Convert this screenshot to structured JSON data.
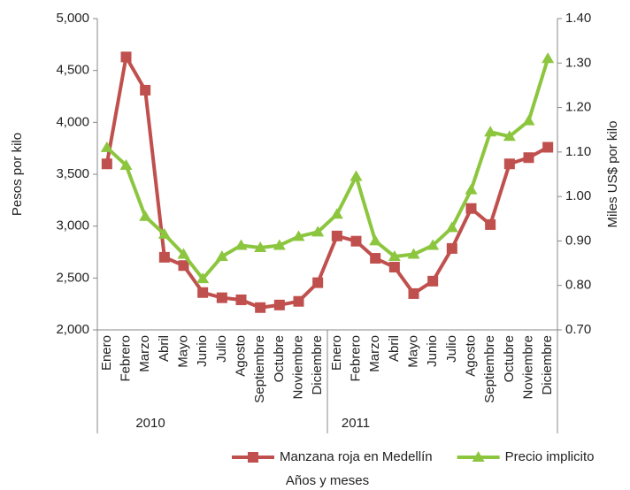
{
  "chart_data": {
    "type": "line",
    "y_label": "Pesos por kilo",
    "y2_label": "Miles US$ por kilo",
    "x_label": "Años y meses",
    "categories": [
      "Enero",
      "Febrero",
      "Marzo",
      "Abril",
      "Mayo",
      "Junio",
      "Julio",
      "Agosto",
      "Septiembre",
      "Octubre",
      "Noviembre",
      "Diciembre",
      "Enero",
      "Febrero",
      "Marzo",
      "Abril",
      "Mayo",
      "Junio",
      "Julio",
      "Agosto",
      "Septiembre",
      "Octubre",
      "Noviembre",
      "Diciembre"
    ],
    "year_groups": [
      "2010",
      "2011"
    ],
    "series": [
      {
        "name": "Manzana roja en Medellín",
        "color": "#c0504d",
        "marker": "square",
        "values": [
          3600,
          4630,
          4310,
          2700,
          2620,
          2360,
          2310,
          2290,
          2215,
          2240,
          2275,
          2455,
          2905,
          2855,
          2690,
          2605,
          2350,
          2470,
          2785,
          3170,
          3015,
          3600,
          3660,
          3760
        ]
      },
      {
        "name": "Precio implicito",
        "color": "#8cc63f",
        "marker": "triangle",
        "axis": "y2",
        "values": [
          1.11,
          1.07,
          0.955,
          0.915,
          0.87,
          0.815,
          0.865,
          0.89,
          0.885,
          0.89,
          0.91,
          0.92,
          0.96,
          1.045,
          0.9,
          0.865,
          0.87,
          0.89,
          0.93,
          1.015,
          1.145,
          1.135,
          1.17,
          1.31
        ]
      }
    ],
    "ylim": [
      2000,
      5000
    ],
    "yticks": [
      {
        "value": 2000,
        "label": "2,000"
      },
      {
        "value": 2500,
        "label": "2,500"
      },
      {
        "value": 3000,
        "label": "3,000"
      },
      {
        "value": 3500,
        "label": "3,500"
      },
      {
        "value": 4000,
        "label": "4,000"
      },
      {
        "value": 4500,
        "label": "4,500"
      },
      {
        "value": 5000,
        "label": "5,000"
      }
    ],
    "y2lim": [
      0.7,
      1.4
    ],
    "y2ticks": [
      {
        "value": 0.7,
        "label": "0.70"
      },
      {
        "value": 0.8,
        "label": "0.80"
      },
      {
        "value": 0.9,
        "label": "0.90"
      },
      {
        "value": 1.0,
        "label": "1.00"
      },
      {
        "value": 1.1,
        "label": "1.10"
      },
      {
        "value": 1.2,
        "label": "1.20"
      },
      {
        "value": 1.3,
        "label": "1.30"
      },
      {
        "value": 1.4,
        "label": "1.40"
      }
    ],
    "grid": false,
    "legend": "bottom"
  }
}
